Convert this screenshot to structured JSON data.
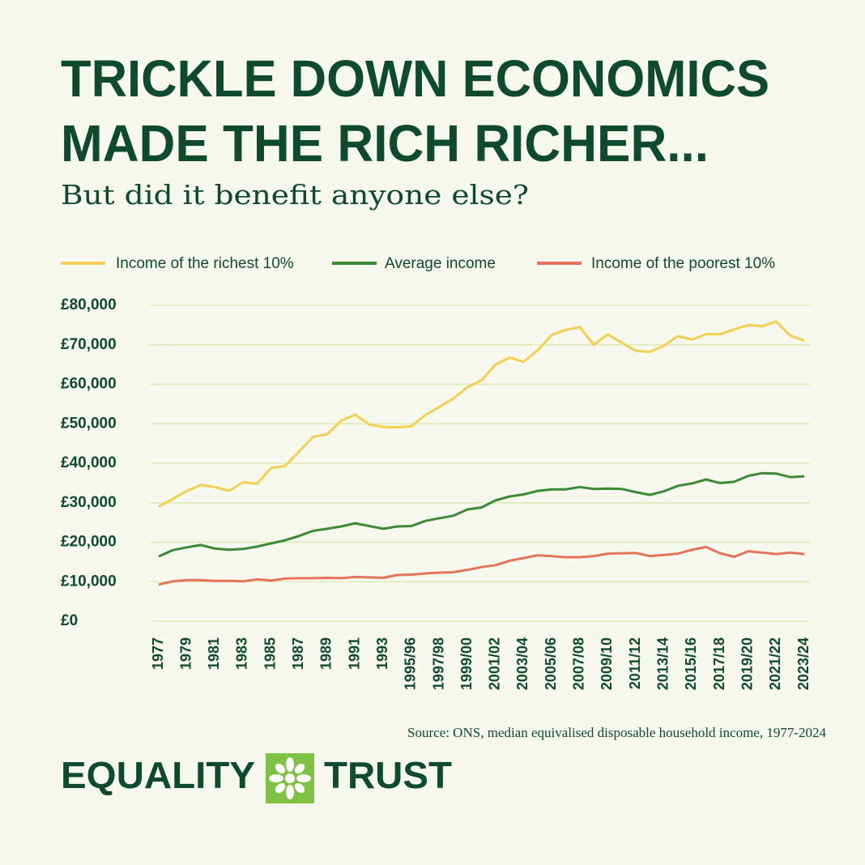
{
  "chart_data": {
    "type": "line",
    "title": [
      "TRICKLE DOWN ECONOMICS",
      "MADE THE RICH RICHER..."
    ],
    "subtitle": "But did it benefit anyone else?",
    "source": "Source: ONS, median equivalised disposable household income, 1977-2024",
    "brand": [
      "EQUALITY",
      "TRUST"
    ],
    "categories": [
      "1977",
      null,
      "1979",
      null,
      "1981",
      null,
      "1983",
      null,
      "1985",
      null,
      "1987",
      null,
      "1989",
      null,
      "1991",
      null,
      "1993",
      null,
      "1995/96",
      null,
      "1997/98",
      null,
      "1999/00",
      null,
      "2001/02",
      null,
      "2003/04",
      null,
      "2005/06",
      null,
      "2007/08",
      null,
      "2009/10",
      null,
      "2011/12",
      null,
      "2013/14",
      null,
      "2015/16",
      null,
      "2017/18",
      null,
      "2019/20",
      null,
      "2021/22",
      null,
      "2023/24"
    ],
    "series": [
      {
        "name": "Income of the richest 10%",
        "color": "#f5cf52",
        "values": [
          29000,
          31000,
          33000,
          34500,
          34000,
          33000,
          35200,
          34800,
          38800,
          39300,
          43000,
          46700,
          47300,
          50800,
          52300,
          49800,
          49200,
          49100,
          49400,
          52200,
          54300,
          56400,
          59300,
          61000,
          65000,
          66800,
          65700,
          68600,
          72500,
          73800,
          74500,
          70000,
          72700,
          70500,
          68500,
          68200,
          69800,
          72200,
          71300,
          72700,
          72700,
          73900,
          75000,
          74700,
          75900,
          72300,
          71100
        ]
      },
      {
        "name": "Average income",
        "color": "#3d8a35",
        "values": [
          16400,
          18000,
          18700,
          19300,
          18400,
          18100,
          18300,
          18900,
          19700,
          20500,
          21600,
          22900,
          23400,
          24000,
          24800,
          24100,
          23400,
          24000,
          24100,
          25400,
          26100,
          26700,
          28300,
          28800,
          30600,
          31600,
          32100,
          33000,
          33400,
          33400,
          34000,
          33500,
          33600,
          33500,
          32700,
          32000,
          32900,
          34300,
          34900,
          35900,
          35000,
          35300,
          36800,
          37500,
          37400,
          36500,
          36700
        ]
      },
      {
        "name": "Income of the poorest 10%",
        "color": "#e5735a",
        "values": [
          9300,
          10100,
          10400,
          10400,
          10200,
          10200,
          10100,
          10600,
          10300,
          10800,
          10900,
          10900,
          11000,
          10900,
          11200,
          11100,
          11000,
          11700,
          11800,
          12100,
          12300,
          12400,
          13000,
          13700,
          14200,
          15300,
          16000,
          16700,
          16500,
          16200,
          16200,
          16500,
          17100,
          17200,
          17300,
          16500,
          16800,
          17100,
          18100,
          18800,
          17200,
          16300,
          17700,
          17400,
          17000,
          17400,
          17000
        ]
      }
    ],
    "ylim": [
      0,
      80000
    ],
    "yticks": [
      {
        "value": 0,
        "label": "£0"
      },
      {
        "value": 10000,
        "label": "£10,000"
      },
      {
        "value": 20000,
        "label": "£20,000"
      },
      {
        "value": 30000,
        "label": "£30,000"
      },
      {
        "value": 40000,
        "label": "£40,000"
      },
      {
        "value": 50000,
        "label": "£50,000"
      },
      {
        "value": 60000,
        "label": "£60,000"
      },
      {
        "value": 70000,
        "label": "£70,000"
      },
      {
        "value": 80000,
        "label": "£80,000"
      }
    ],
    "grid": true,
    "legend": "top"
  }
}
